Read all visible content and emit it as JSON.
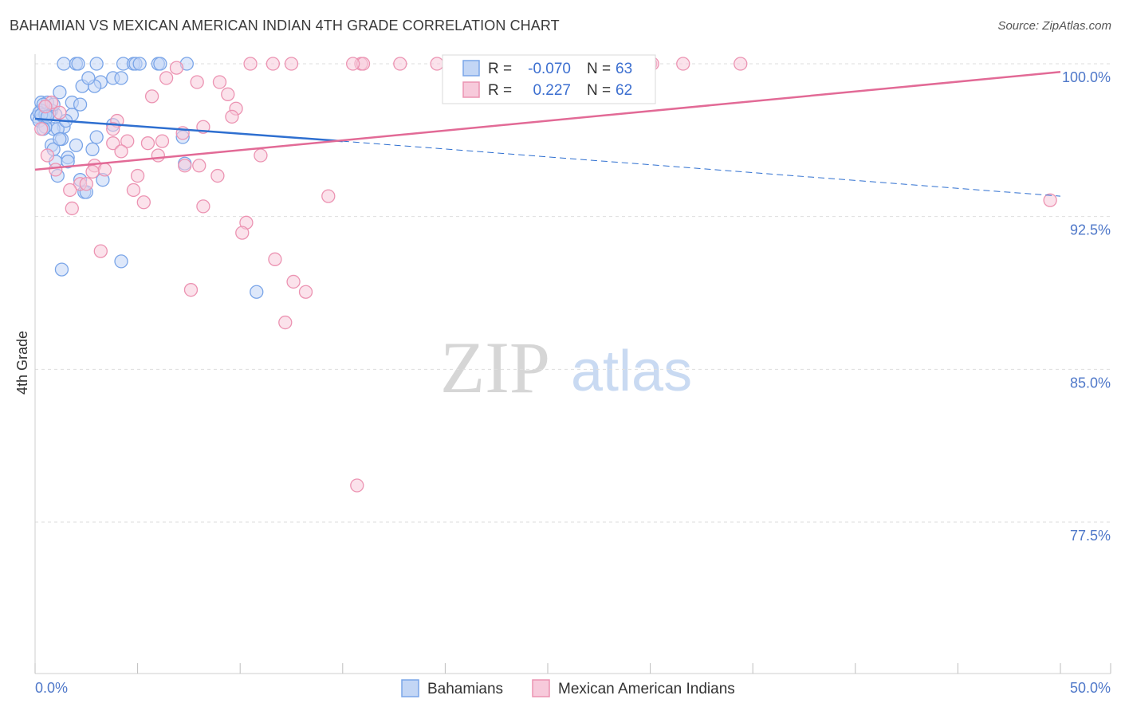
{
  "title": "BAHAMIAN VS MEXICAN AMERICAN INDIAN 4TH GRADE CORRELATION CHART",
  "source": "Source: ZipAtlas.com",
  "watermark": {
    "zip": "ZIP",
    "atlas": "atlas"
  },
  "colors": {
    "blue": "#7aa5e8",
    "blue_fill": "#c3d6f5",
    "blue_line": "#2e6fd0",
    "pink": "#ec93b2",
    "pink_fill": "#f7cadb",
    "pink_line": "#e26a96",
    "grid": "#dedede",
    "label": "#4f78c9"
  },
  "legend": {
    "r_label": "R =",
    "n_label": "N =",
    "series1": {
      "r": "-0.070",
      "n": "63"
    },
    "series2": {
      "r": "0.227",
      "n": "62"
    }
  },
  "bottom_legend": {
    "series1": "Bahamians",
    "series2": "Mexican American Indians"
  },
  "chart_data": {
    "type": "scatter",
    "title": "BAHAMIAN VS MEXICAN AMERICAN INDIAN 4TH GRADE CORRELATION CHART",
    "xlabel": "",
    "ylabel": "4th Grade",
    "xlim": [
      0,
      50
    ],
    "ylim": [
      70,
      100.8
    ],
    "x_tick_labels": [
      "0.0%",
      "50.0%"
    ],
    "y_ticks": [
      100.0,
      92.5,
      85.0,
      77.5
    ],
    "y_tick_labels": [
      "100.0%",
      "92.5%",
      "85.0%",
      "77.5%"
    ],
    "series": [
      {
        "name": "Bahamians",
        "r": -0.07,
        "n": 63,
        "trend": {
          "x0": 0,
          "y0": 97.3,
          "x1": 15,
          "y1": 96.2,
          "dash_x1": 50,
          "dash_y1": 93.5
        },
        "points": [
          [
            1.4,
            100
          ],
          [
            2.0,
            100
          ],
          [
            2.1,
            100
          ],
          [
            3.0,
            100
          ],
          [
            4.3,
            100
          ],
          [
            4.8,
            100
          ],
          [
            4.9,
            100
          ],
          [
            5.1,
            100
          ],
          [
            6.0,
            100
          ],
          [
            6.1,
            100
          ],
          [
            7.4,
            100
          ],
          [
            3.8,
            99.3
          ],
          [
            4.2,
            99.3
          ],
          [
            3.2,
            99.1
          ],
          [
            2.3,
            98.9
          ],
          [
            2.9,
            98.9
          ],
          [
            1.2,
            98.6
          ],
          [
            0.3,
            98.1
          ],
          [
            0.6,
            98.1
          ],
          [
            1.8,
            98.1
          ],
          [
            0.3,
            97.7
          ],
          [
            0.8,
            97.7
          ],
          [
            1.0,
            97.5
          ],
          [
            1.8,
            97.5
          ],
          [
            0.1,
            97.4
          ],
          [
            0.4,
            97.4
          ],
          [
            0.2,
            97.2
          ],
          [
            3.8,
            97.0
          ],
          [
            1.4,
            96.9
          ],
          [
            0.9,
            96.8
          ],
          [
            1.1,
            96.8
          ],
          [
            0.5,
            96.9
          ],
          [
            3.0,
            96.4
          ],
          [
            1.3,
            96.3
          ],
          [
            7.2,
            96.4
          ],
          [
            2.0,
            96.0
          ],
          [
            0.8,
            96.0
          ],
          [
            2.8,
            95.8
          ],
          [
            0.9,
            95.8
          ],
          [
            1.6,
            95.4
          ],
          [
            1.0,
            95.2
          ],
          [
            1.6,
            95.2
          ],
          [
            7.3,
            95.1
          ],
          [
            1.1,
            94.5
          ],
          [
            2.2,
            94.3
          ],
          [
            3.3,
            94.3
          ],
          [
            2.4,
            93.7
          ],
          [
            2.5,
            93.7
          ],
          [
            4.2,
            90.3
          ],
          [
            1.3,
            89.9
          ],
          [
            10.8,
            88.8
          ],
          [
            0.2,
            97.6
          ],
          [
            0.7,
            97.6
          ],
          [
            0.5,
            97.5
          ],
          [
            0.3,
            97.5
          ],
          [
            1.5,
            97.2
          ],
          [
            2.2,
            98.0
          ],
          [
            0.9,
            98.0
          ],
          [
            2.6,
            99.3
          ],
          [
            0.4,
            96.8
          ],
          [
            1.2,
            96.3
          ],
          [
            0.6,
            97.4
          ],
          [
            0.4,
            98.0
          ]
        ]
      },
      {
        "name": "Mexican American Indians",
        "r": 0.227,
        "n": 62,
        "trend": {
          "x0": 0,
          "y0": 94.8,
          "x1": 50,
          "y1": 99.6
        },
        "points": [
          [
            10.5,
            100
          ],
          [
            11.6,
            100
          ],
          [
            12.5,
            100
          ],
          [
            15.9,
            100
          ],
          [
            16.0,
            100
          ],
          [
            17.8,
            100
          ],
          [
            19.6,
            100
          ],
          [
            30.0,
            100
          ],
          [
            30.1,
            100
          ],
          [
            31.6,
            100
          ],
          [
            34.4,
            100
          ],
          [
            15.5,
            100
          ],
          [
            6.9,
            99.8
          ],
          [
            6.4,
            99.3
          ],
          [
            7.9,
            99.1
          ],
          [
            9.0,
            99.1
          ],
          [
            9.4,
            98.5
          ],
          [
            5.7,
            98.4
          ],
          [
            9.8,
            97.8
          ],
          [
            9.6,
            97.4
          ],
          [
            4.0,
            97.2
          ],
          [
            8.2,
            96.9
          ],
          [
            7.2,
            96.6
          ],
          [
            6.2,
            96.2
          ],
          [
            4.5,
            96.2
          ],
          [
            3.8,
            96.1
          ],
          [
            5.5,
            96.1
          ],
          [
            4.2,
            95.7
          ],
          [
            6.0,
            95.5
          ],
          [
            11.0,
            95.5
          ],
          [
            2.9,
            95.0
          ],
          [
            8.0,
            95.0
          ],
          [
            1.0,
            94.8
          ],
          [
            3.4,
            94.8
          ],
          [
            2.8,
            94.7
          ],
          [
            5.0,
            94.5
          ],
          [
            8.9,
            94.5
          ],
          [
            2.2,
            94.1
          ],
          [
            1.7,
            93.8
          ],
          [
            4.8,
            93.8
          ],
          [
            14.3,
            93.5
          ],
          [
            5.3,
            93.2
          ],
          [
            8.2,
            93.0
          ],
          [
            1.8,
            92.9
          ],
          [
            49.5,
            93.3
          ],
          [
            10.3,
            92.2
          ],
          [
            10.1,
            91.7
          ],
          [
            3.2,
            90.8
          ],
          [
            11.7,
            90.4
          ],
          [
            12.6,
            89.3
          ],
          [
            7.6,
            88.9
          ],
          [
            13.2,
            88.8
          ],
          [
            12.2,
            87.3
          ],
          [
            15.7,
            79.3
          ],
          [
            0.3,
            96.8
          ],
          [
            0.6,
            95.5
          ],
          [
            2.5,
            94.1
          ],
          [
            0.8,
            98.1
          ],
          [
            0.5,
            97.9
          ],
          [
            1.2,
            97.6
          ],
          [
            3.8,
            96.8
          ],
          [
            7.3,
            95.0
          ]
        ]
      }
    ]
  }
}
